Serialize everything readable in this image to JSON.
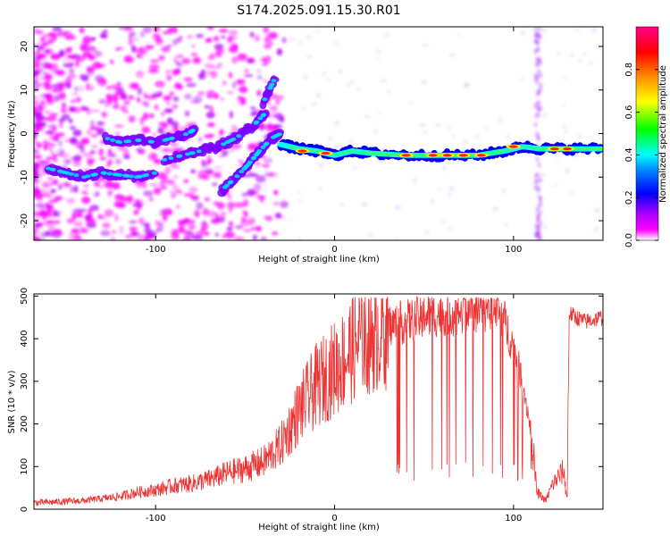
{
  "chart_data": [
    {
      "type": "heatmap",
      "title": "S174.2025.091.15.30.R01",
      "xlabel": "Height of straight line (km)",
      "ylabel": "Frequency (Hz)",
      "xlim": [
        -168,
        150
      ],
      "ylim": [
        -24.5,
        24.5
      ],
      "xticks": [
        -100,
        0,
        100
      ],
      "yticks": [
        -20,
        -10,
        0,
        10,
        20
      ],
      "colorbar": {
        "label": "Normalized spectral amplitude",
        "range": [
          0,
          1
        ],
        "ticks": [
          0.0,
          0.2,
          0.4,
          0.6,
          0.8
        ],
        "colormap": [
          "#ffffff",
          "#ff00ff",
          "#7f00ff",
          "#0000ff",
          "#00ffff",
          "#00ff00",
          "#ffff00",
          "#ff7f00",
          "#ff0000",
          "#ff007f"
        ]
      },
      "ridges": [
        {
          "x": [
            -160,
            -150,
            -140,
            -130,
            -120,
            -110,
            -100
          ],
          "y": [
            -8,
            -9,
            -10,
            -9,
            -9.5,
            -10,
            -9
          ]
        },
        {
          "x": [
            -128,
            -120,
            -110,
            -100,
            -90,
            -82,
            -78
          ],
          "y": [
            -1,
            -2,
            -1.5,
            -2,
            -1,
            0,
            1
          ]
        },
        {
          "x": [
            -95,
            -85,
            -75,
            -65,
            -55,
            -45,
            -38
          ],
          "y": [
            -6,
            -5,
            -4,
            -3,
            -1,
            2,
            5
          ]
        },
        {
          "x": [
            -40,
            -33
          ],
          "y": [
            7,
            13
          ]
        },
        {
          "x": [
            -63,
            -55,
            -48,
            -42,
            -35,
            -30
          ],
          "y": [
            -13,
            -10,
            -7,
            -4,
            -1,
            0
          ]
        },
        {
          "x": [
            -30,
            -20,
            -10,
            0,
            10,
            20,
            40,
            60,
            80,
            95,
            105,
            115,
            130,
            150
          ],
          "y": [
            -2.5,
            -3.5,
            -4,
            -5,
            -4,
            -4.5,
            -5,
            -5,
            -5,
            -4,
            -3,
            -3.5,
            -3.5,
            -3.5
          ]
        }
      ]
    },
    {
      "type": "line",
      "title": "",
      "xlabel": "Height of straight line (km)",
      "ylabel": "SNR (10 * v/v)",
      "xlim": [
        -168,
        150
      ],
      "ylim": [
        0,
        505
      ],
      "xticks": [
        -100,
        0,
        100
      ],
      "yticks": [
        0,
        100,
        200,
        300,
        400,
        500
      ],
      "color": "#ee3333",
      "series": [
        {
          "name": "",
          "x": [
            -168,
            -150,
            -140,
            -130,
            -120,
            -110,
            -100,
            -90,
            -80,
            -70,
            -60,
            -50,
            -40,
            -30,
            -25,
            -20,
            -15,
            -10,
            -5,
            0,
            5,
            10,
            15,
            20,
            25,
            30,
            40,
            50,
            60,
            70,
            80,
            90,
            95,
            100,
            105,
            110,
            113,
            118,
            122,
            128,
            130,
            131,
            135,
            140,
            150
          ],
          "y": [
            15,
            18,
            20,
            25,
            30,
            40,
            45,
            55,
            60,
            70,
            85,
            95,
            110,
            150,
            190,
            230,
            260,
            290,
            310,
            330,
            350,
            380,
            400,
            410,
            420,
            430,
            440,
            450,
            460,
            460,
            470,
            470,
            440,
            380,
            300,
            180,
            40,
            20,
            60,
            90,
            20,
            460,
            450,
            440,
            450
          ]
        }
      ]
    }
  ]
}
